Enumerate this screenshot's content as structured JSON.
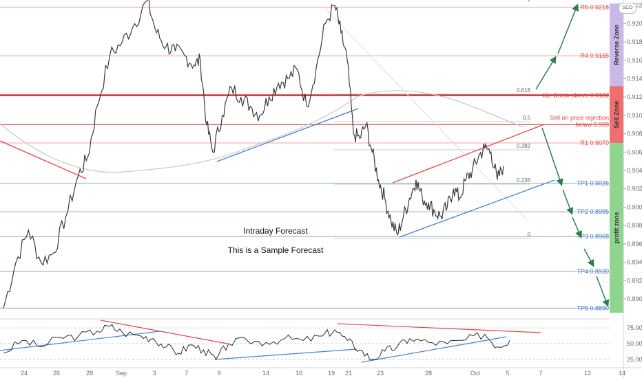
{
  "chart_data": {
    "type": "line",
    "instrument_axis": {
      "ticks": [
        "0.92200",
        "0.92000",
        "0.91800",
        "0.91600",
        "0.91400",
        "0.91200",
        "0.91000",
        "0.90800",
        "0.90600",
        "0.90400",
        "0.90200",
        "0.90000",
        "0.89800",
        "0.89600",
        "0.89400",
        "0.89200",
        "0.89000"
      ],
      "ylim": [
        0.8885,
        0.9222
      ]
    },
    "x_ticks": [
      "24",
      "26",
      "28",
      "Sep",
      "3",
      "7",
      "9",
      "14",
      "16",
      "19",
      "21",
      "23",
      "28",
      "Oct",
      "5",
      "7",
      "12",
      "14"
    ],
    "levels": [
      {
        "label": "R5 0.9218",
        "value": 0.9218,
        "kind": "resistance"
      },
      {
        "label": "R4 0.9165",
        "value": 0.9165,
        "kind": "resistance"
      },
      {
        "label": "SL: Break above 0.9122",
        "value": 0.9122,
        "kind": "stop"
      },
      {
        "label": "Sell on price rejection",
        "label2": "below  0.909",
        "value": 0.909,
        "kind": "entry"
      },
      {
        "label": "R1 0.9070",
        "value": 0.907,
        "kind": "resistance"
      },
      {
        "label": "TP1 0.9026",
        "value": 0.9026,
        "kind": "target"
      },
      {
        "label": "TP2 0.8995",
        "value": 0.8995,
        "kind": "target"
      },
      {
        "label": "TP3 0.8968",
        "value": 0.8968,
        "kind": "target"
      },
      {
        "label": "TP4 0.8930",
        "value": 0.893,
        "kind": "target"
      },
      {
        "label": "TP5 0.8890",
        "value": 0.889,
        "kind": "target"
      }
    ],
    "fib_labels": [
      "1",
      "0.618",
      "0.5",
      "0.382",
      "0.236",
      "0"
    ],
    "zones": [
      {
        "label": "Reverse Zone",
        "color": "#c9b8e8",
        "from": 0.9132,
        "to": 0.9222
      },
      {
        "label": "Sell Zone",
        "color": "#ef6f6f",
        "from": 0.907,
        "to": 0.9132
      },
      {
        "label": "profit zone",
        "color": "#8fd48f",
        "from": 0.8885,
        "to": 0.907
      }
    ],
    "annotations": [
      "Intraday Forecast",
      "This is  a Sample Forecast"
    ],
    "price_series": [
      {
        "x": 0,
        "y": 0.889
      },
      {
        "x": 4,
        "y": 0.894
      },
      {
        "x": 8,
        "y": 0.8975
      },
      {
        "x": 12,
        "y": 0.894
      },
      {
        "x": 16,
        "y": 0.895
      },
      {
        "x": 20,
        "y": 0.899
      },
      {
        "x": 24,
        "y": 0.9035
      },
      {
        "x": 27,
        "y": 0.9055
      },
      {
        "x": 30,
        "y": 0.911
      },
      {
        "x": 34,
        "y": 0.9165
      },
      {
        "x": 38,
        "y": 0.918
      },
      {
        "x": 42,
        "y": 0.92
      },
      {
        "x": 46,
        "y": 0.9225
      },
      {
        "x": 49,
        "y": 0.919
      },
      {
        "x": 52,
        "y": 0.9175
      },
      {
        "x": 55,
        "y": 0.917
      },
      {
        "x": 58,
        "y": 0.9165
      },
      {
        "x": 61,
        "y": 0.9155
      },
      {
        "x": 63,
        "y": 0.916
      },
      {
        "x": 65,
        "y": 0.909
      },
      {
        "x": 67,
        "y": 0.906
      },
      {
        "x": 70,
        "y": 0.91
      },
      {
        "x": 73,
        "y": 0.913
      },
      {
        "x": 76,
        "y": 0.912
      },
      {
        "x": 79,
        "y": 0.911
      },
      {
        "x": 82,
        "y": 0.91
      },
      {
        "x": 85,
        "y": 0.912
      },
      {
        "x": 88,
        "y": 0.9135
      },
      {
        "x": 91,
        "y": 0.914
      },
      {
        "x": 94,
        "y": 0.915
      },
      {
        "x": 97,
        "y": 0.911
      },
      {
        "x": 100,
        "y": 0.915
      },
      {
        "x": 103,
        "y": 0.92
      },
      {
        "x": 106,
        "y": 0.922
      },
      {
        "x": 108,
        "y": 0.919
      },
      {
        "x": 110,
        "y": 0.916
      },
      {
        "x": 112,
        "y": 0.908
      },
      {
        "x": 114,
        "y": 0.9075
      },
      {
        "x": 116,
        "y": 0.909
      },
      {
        "x": 118,
        "y": 0.906
      },
      {
        "x": 120,
        "y": 0.903
      },
      {
        "x": 122,
        "y": 0.901
      },
      {
        "x": 124,
        "y": 0.8985
      },
      {
        "x": 126,
        "y": 0.897
      },
      {
        "x": 128,
        "y": 0.899
      },
      {
        "x": 130,
        "y": 0.901
      },
      {
        "x": 132,
        "y": 0.903
      },
      {
        "x": 134,
        "y": 0.901
      },
      {
        "x": 136,
        "y": 0.9005
      },
      {
        "x": 138,
        "y": 0.8995
      },
      {
        "x": 140,
        "y": 0.899
      },
      {
        "x": 142,
        "y": 0.9
      },
      {
        "x": 144,
        "y": 0.902
      },
      {
        "x": 146,
        "y": 0.901
      },
      {
        "x": 148,
        "y": 0.903
      },
      {
        "x": 150,
        "y": 0.904
      },
      {
        "x": 152,
        "y": 0.9055
      },
      {
        "x": 154,
        "y": 0.9065
      },
      {
        "x": 156,
        "y": 0.906
      },
      {
        "x": 158,
        "y": 0.903
      },
      {
        "x": 160,
        "y": 0.9045
      }
    ],
    "oscillator": {
      "ticks": [
        "75.00",
        "50.00",
        "25.00"
      ],
      "ylim": [
        15,
        85
      ],
      "values": [
        {
          "x": 0,
          "y": 35
        },
        {
          "x": 6,
          "y": 55
        },
        {
          "x": 12,
          "y": 45
        },
        {
          "x": 18,
          "y": 60
        },
        {
          "x": 24,
          "y": 62
        },
        {
          "x": 30,
          "y": 70
        },
        {
          "x": 34,
          "y": 78
        },
        {
          "x": 38,
          "y": 68
        },
        {
          "x": 44,
          "y": 62
        },
        {
          "x": 48,
          "y": 58
        },
        {
          "x": 52,
          "y": 45
        },
        {
          "x": 56,
          "y": 35
        },
        {
          "x": 60,
          "y": 48
        },
        {
          "x": 64,
          "y": 40
        },
        {
          "x": 68,
          "y": 25
        },
        {
          "x": 72,
          "y": 50
        },
        {
          "x": 78,
          "y": 55
        },
        {
          "x": 84,
          "y": 52
        },
        {
          "x": 90,
          "y": 58
        },
        {
          "x": 96,
          "y": 55
        },
        {
          "x": 102,
          "y": 62
        },
        {
          "x": 106,
          "y": 72
        },
        {
          "x": 110,
          "y": 55
        },
        {
          "x": 114,
          "y": 40
        },
        {
          "x": 118,
          "y": 25
        },
        {
          "x": 122,
          "y": 38
        },
        {
          "x": 126,
          "y": 45
        },
        {
          "x": 130,
          "y": 58
        },
        {
          "x": 136,
          "y": 52
        },
        {
          "x": 142,
          "y": 50
        },
        {
          "x": 148,
          "y": 56
        },
        {
          "x": 154,
          "y": 65
        },
        {
          "x": 158,
          "y": 45
        },
        {
          "x": 162,
          "y": 55
        }
      ]
    }
  },
  "logo_text": "SCO"
}
